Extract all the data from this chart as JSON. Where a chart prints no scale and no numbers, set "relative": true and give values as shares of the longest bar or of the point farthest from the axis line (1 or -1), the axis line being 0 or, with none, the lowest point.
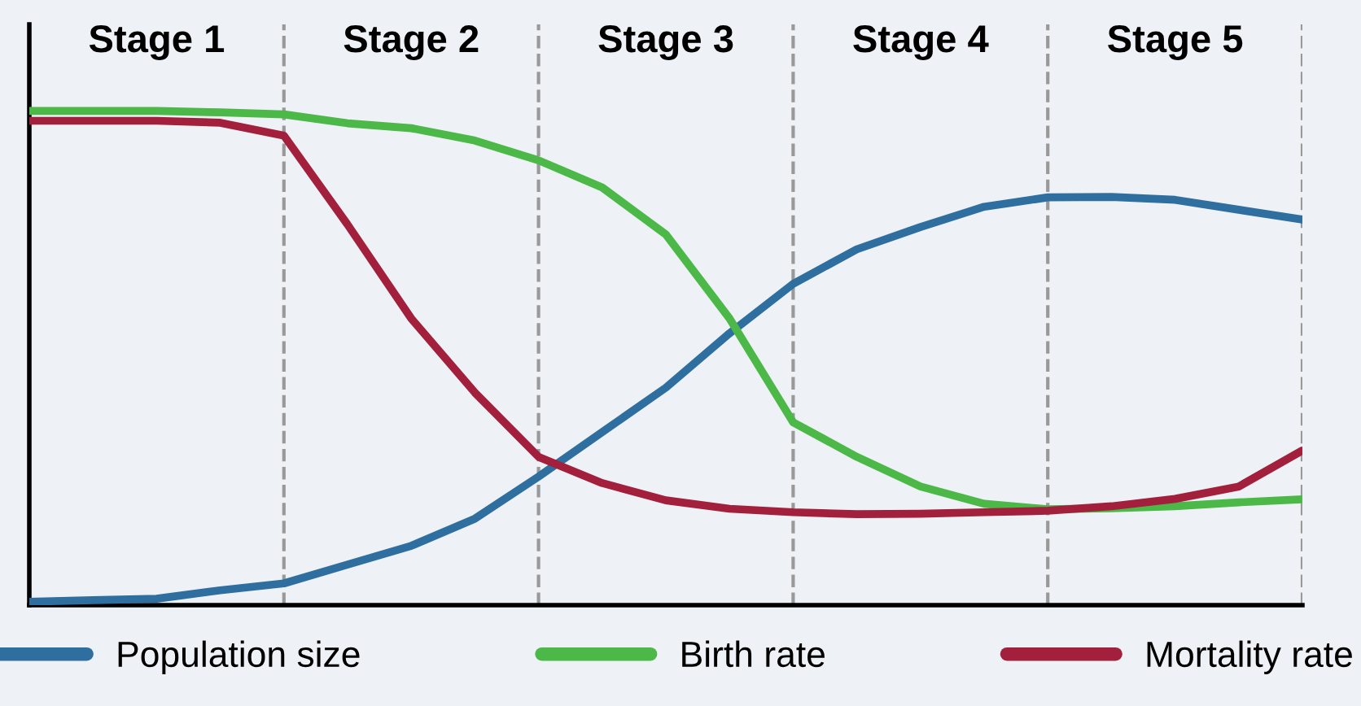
{
  "chart_data": {
    "type": "line",
    "relative": true,
    "categories": [
      null,
      null,
      null,
      null,
      null,
      null,
      null,
      null,
      null,
      null,
      null,
      null,
      null,
      null,
      null,
      null,
      null,
      null,
      null,
      null,
      null
    ],
    "annotations": [
      "Stage 1",
      "Stage 2",
      "Stage 3",
      "Stage 4",
      "Stage 5"
    ],
    "series": [
      {
        "name": "Population size",
        "color": "#2e6fa0",
        "values": [
          0.007,
          0.01,
          0.013,
          0.03,
          0.044,
          0.082,
          0.12,
          0.175,
          0.26,
          0.35,
          0.44,
          0.55,
          0.65,
          0.72,
          0.765,
          0.806,
          0.825,
          0.826,
          0.82,
          0.8,
          0.78
        ]
      },
      {
        "name": "Birth rate",
        "color": "#4cb848",
        "values": [
          1,
          1,
          1,
          0.997,
          0.993,
          0.975,
          0.965,
          0.94,
          0.9,
          0.845,
          0.75,
          0.58,
          0.37,
          0.3,
          0.24,
          0.205,
          0.194,
          0.196,
          0.2,
          0.208,
          0.214
        ]
      },
      {
        "name": "Mortality rate",
        "color": "#a3203c",
        "values": [
          0.98,
          0.98,
          0.98,
          0.976,
          0.95,
          0.77,
          0.58,
          0.43,
          0.3,
          0.247,
          0.212,
          0.195,
          0.188,
          0.184,
          0.185,
          0.188,
          0.191,
          0.2,
          0.215,
          0.24,
          0.313
        ]
      }
    ],
    "grid": "x",
    "legend": "bottom",
    "marker": "none",
    "line_style": "solid"
  }
}
